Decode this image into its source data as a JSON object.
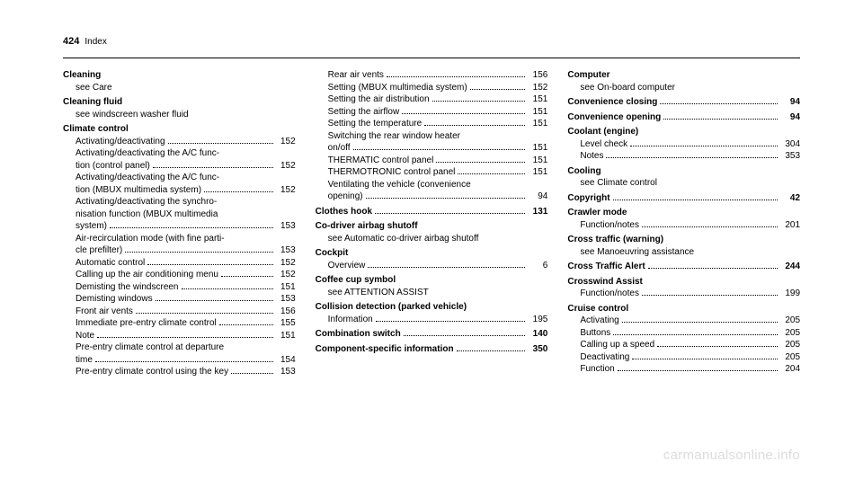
{
  "header": {
    "page_number": "424",
    "title": "Index"
  },
  "watermark": "carmanualsonline.info",
  "columns": [
    {
      "entries": [
        {
          "title": "Cleaning",
          "subs": [
            {
              "text": "see Care"
            }
          ]
        },
        {
          "title": "Cleaning fluid",
          "subs": [
            {
              "text": "see windscreen washer fluid"
            }
          ]
        },
        {
          "title": "Climate control",
          "subs": [
            {
              "text": "Activating/deactivating",
              "page": "152"
            },
            {
              "text": "Activating/deactivating the A/C func‐<br>tion (control panel)",
              "page": "152"
            },
            {
              "text": "Activating/deactivating the A/C func‐<br>tion (MBUX multimedia system)",
              "page": "152"
            },
            {
              "text": "Activating/deactivating the synchro‐<br>nisation function (MBUX multimedia<br>system)",
              "page": "153"
            },
            {
              "text": "Air-recirculation mode (with fine parti‐<br>cle prefilter)",
              "page": "153"
            },
            {
              "text": "Automatic control",
              "page": "152"
            },
            {
              "text": "Calling up the air conditioning menu",
              "page": "152"
            },
            {
              "text": "Demisting the windscreen",
              "page": "151"
            },
            {
              "text": "Demisting windows",
              "page": "153"
            },
            {
              "text": "Front air vents",
              "page": "156"
            },
            {
              "text": "Immediate pre-entry climate control",
              "page": "155"
            },
            {
              "text": "Note",
              "page": "151"
            },
            {
              "text": "Pre-entry climate control at departure<br>time",
              "page": "154"
            },
            {
              "text": "Pre-entry climate control using the key",
              "page": "153"
            }
          ]
        }
      ]
    },
    {
      "entries": [
        {
          "title": null,
          "subs": [
            {
              "text": "Rear air vents",
              "page": "156"
            },
            {
              "text": "Setting (MBUX multimedia system)",
              "page": "152"
            },
            {
              "text": "Setting the air distribution",
              "page": "151"
            },
            {
              "text": "Setting the airflow",
              "page": "151"
            },
            {
              "text": "Setting the temperature",
              "page": "151"
            },
            {
              "text": "Switching the rear window heater<br>on/off",
              "page": "151"
            },
            {
              "text": "THERMATIC control panel",
              "page": "151"
            },
            {
              "text": "THERMOTRONIC control panel",
              "page": "151"
            },
            {
              "text": "Ventilating the vehicle (convenience<br>opening)",
              "page": "94"
            }
          ]
        },
        {
          "title": "Clothes hook",
          "page": "131",
          "subs": []
        },
        {
          "title": "Co-driver airbag shutoff",
          "subs": [
            {
              "text": "see Automatic co-driver airbag shutoff"
            }
          ]
        },
        {
          "title": "Cockpit",
          "subs": [
            {
              "text": "Overview",
              "page": "6"
            }
          ]
        },
        {
          "title": "Coffee cup symbol",
          "subs": [
            {
              "text": "see ATTENTION ASSIST"
            }
          ]
        },
        {
          "title": "Collision detection (parked vehicle)",
          "subs": [
            {
              "text": "Information",
              "page": "195"
            }
          ]
        },
        {
          "title": "Combination switch",
          "page": "140",
          "subs": []
        },
        {
          "title": "Component-specific information",
          "page": "350",
          "subs": []
        }
      ]
    },
    {
      "entries": [
        {
          "title": "Computer",
          "subs": [
            {
              "text": "see On-board computer"
            }
          ]
        },
        {
          "title": "Convenience closing",
          "page": "94",
          "subs": []
        },
        {
          "title": "Convenience opening",
          "page": "94",
          "subs": []
        },
        {
          "title": "Coolant (engine)",
          "subs": [
            {
              "text": "Level check",
              "page": "304"
            },
            {
              "text": "Notes",
              "page": "353"
            }
          ]
        },
        {
          "title": "Cooling",
          "subs": [
            {
              "text": "see Climate control"
            }
          ]
        },
        {
          "title": "Copyright",
          "page": "42",
          "subs": []
        },
        {
          "title": "Crawler mode",
          "subs": [
            {
              "text": "Function/notes",
              "page": "201"
            }
          ]
        },
        {
          "title": "Cross traffic (warning)",
          "subs": [
            {
              "text": "see Manoeuvring assistance"
            }
          ]
        },
        {
          "title": "Cross Traffic Alert",
          "page": "244",
          "subs": []
        },
        {
          "title": "Crosswind Assist",
          "subs": [
            {
              "text": "Function/notes",
              "page": "199"
            }
          ]
        },
        {
          "title": "Cruise control",
          "subs": [
            {
              "text": "Activating",
              "page": "205"
            },
            {
              "text": "Buttons",
              "page": "205"
            },
            {
              "text": "Calling up a speed",
              "page": "205"
            },
            {
              "text": "Deactivating",
              "page": "205"
            },
            {
              "text": "Function",
              "page": "204"
            }
          ]
        }
      ]
    }
  ]
}
